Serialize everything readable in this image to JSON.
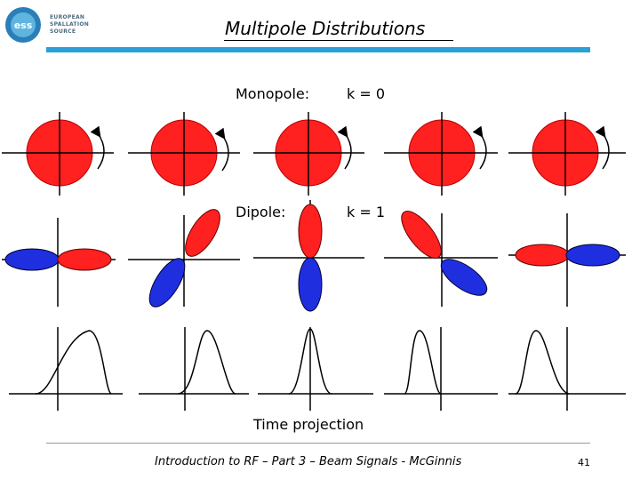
{
  "header": {
    "logo_icon": "ess-logo-icon",
    "logo_mark": "ess",
    "logo_text": "EUROPEAN\nSPALLATION\nSOURCE",
    "title": "Multipole Distributions",
    "accent_color": "#2aa0d8"
  },
  "rows": {
    "monopole": {
      "name": "Monopole:",
      "k": "k = 0",
      "color": "#ff2020"
    },
    "dipole": {
      "name": "Dipole:",
      "k": "k = 1",
      "colors": [
        "#ff2020",
        "#1f2fe0"
      ]
    },
    "time_projection": "Time projection"
  },
  "footer": {
    "text": "Introduction to RF – Part 3 – Beam Signals - McGinnis",
    "page": "41"
  }
}
